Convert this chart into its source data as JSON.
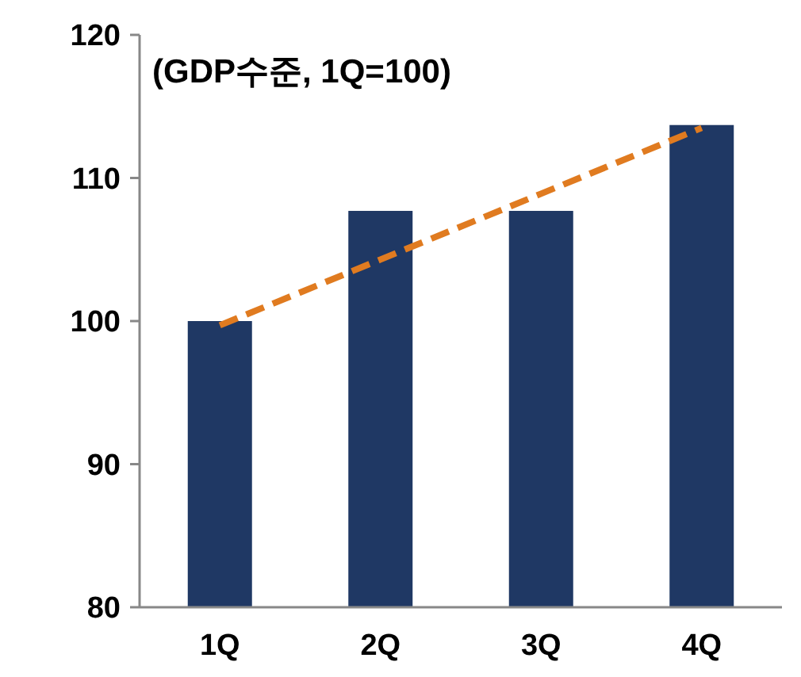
{
  "chart_data": {
    "type": "bar",
    "title": "(GDP수준, 1Q=100)",
    "categories": [
      "1Q",
      "2Q",
      "3Q",
      "4Q"
    ],
    "series": [
      {
        "color": "#1f3864",
        "values": [
          100,
          107.7,
          107.7,
          113.7
        ]
      },
      {
        "type": "line",
        "color": "#e07b20",
        "values": [
          99.7,
          104.3,
          108.9,
          113.5
        ],
        "line_style": "dashed",
        "marker": "none"
      }
    ],
    "ylim": [
      80,
      120
    ],
    "yticks": [
      80,
      90,
      100,
      110,
      120
    ],
    "grid": false
  }
}
